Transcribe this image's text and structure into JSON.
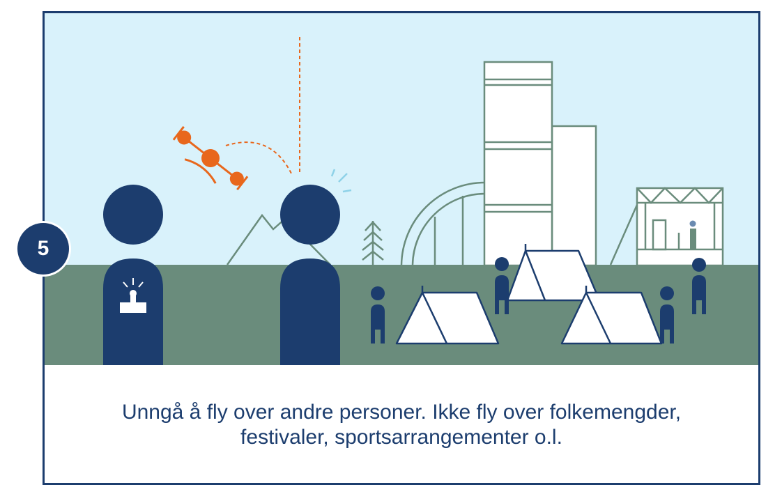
{
  "step": {
    "number": "5"
  },
  "caption": {
    "line1": "Unngå å fly over andre personer. Ikke fly over folkemengder,",
    "line2": "festivaler, sportsarrangementer o.l."
  },
  "colors": {
    "border": "#1c3d6e",
    "sky": "#d9f2fb",
    "ground": "#6a8c7c",
    "figure": "#1c3d6e",
    "drone": "#e8671c",
    "outline": "#6a8c7c"
  },
  "icons": [
    "drone-icon",
    "remote-controller-icon",
    "tent-icon",
    "mountain-icon",
    "tree-icon",
    "building-icon",
    "stage-icon",
    "person-icon"
  ]
}
